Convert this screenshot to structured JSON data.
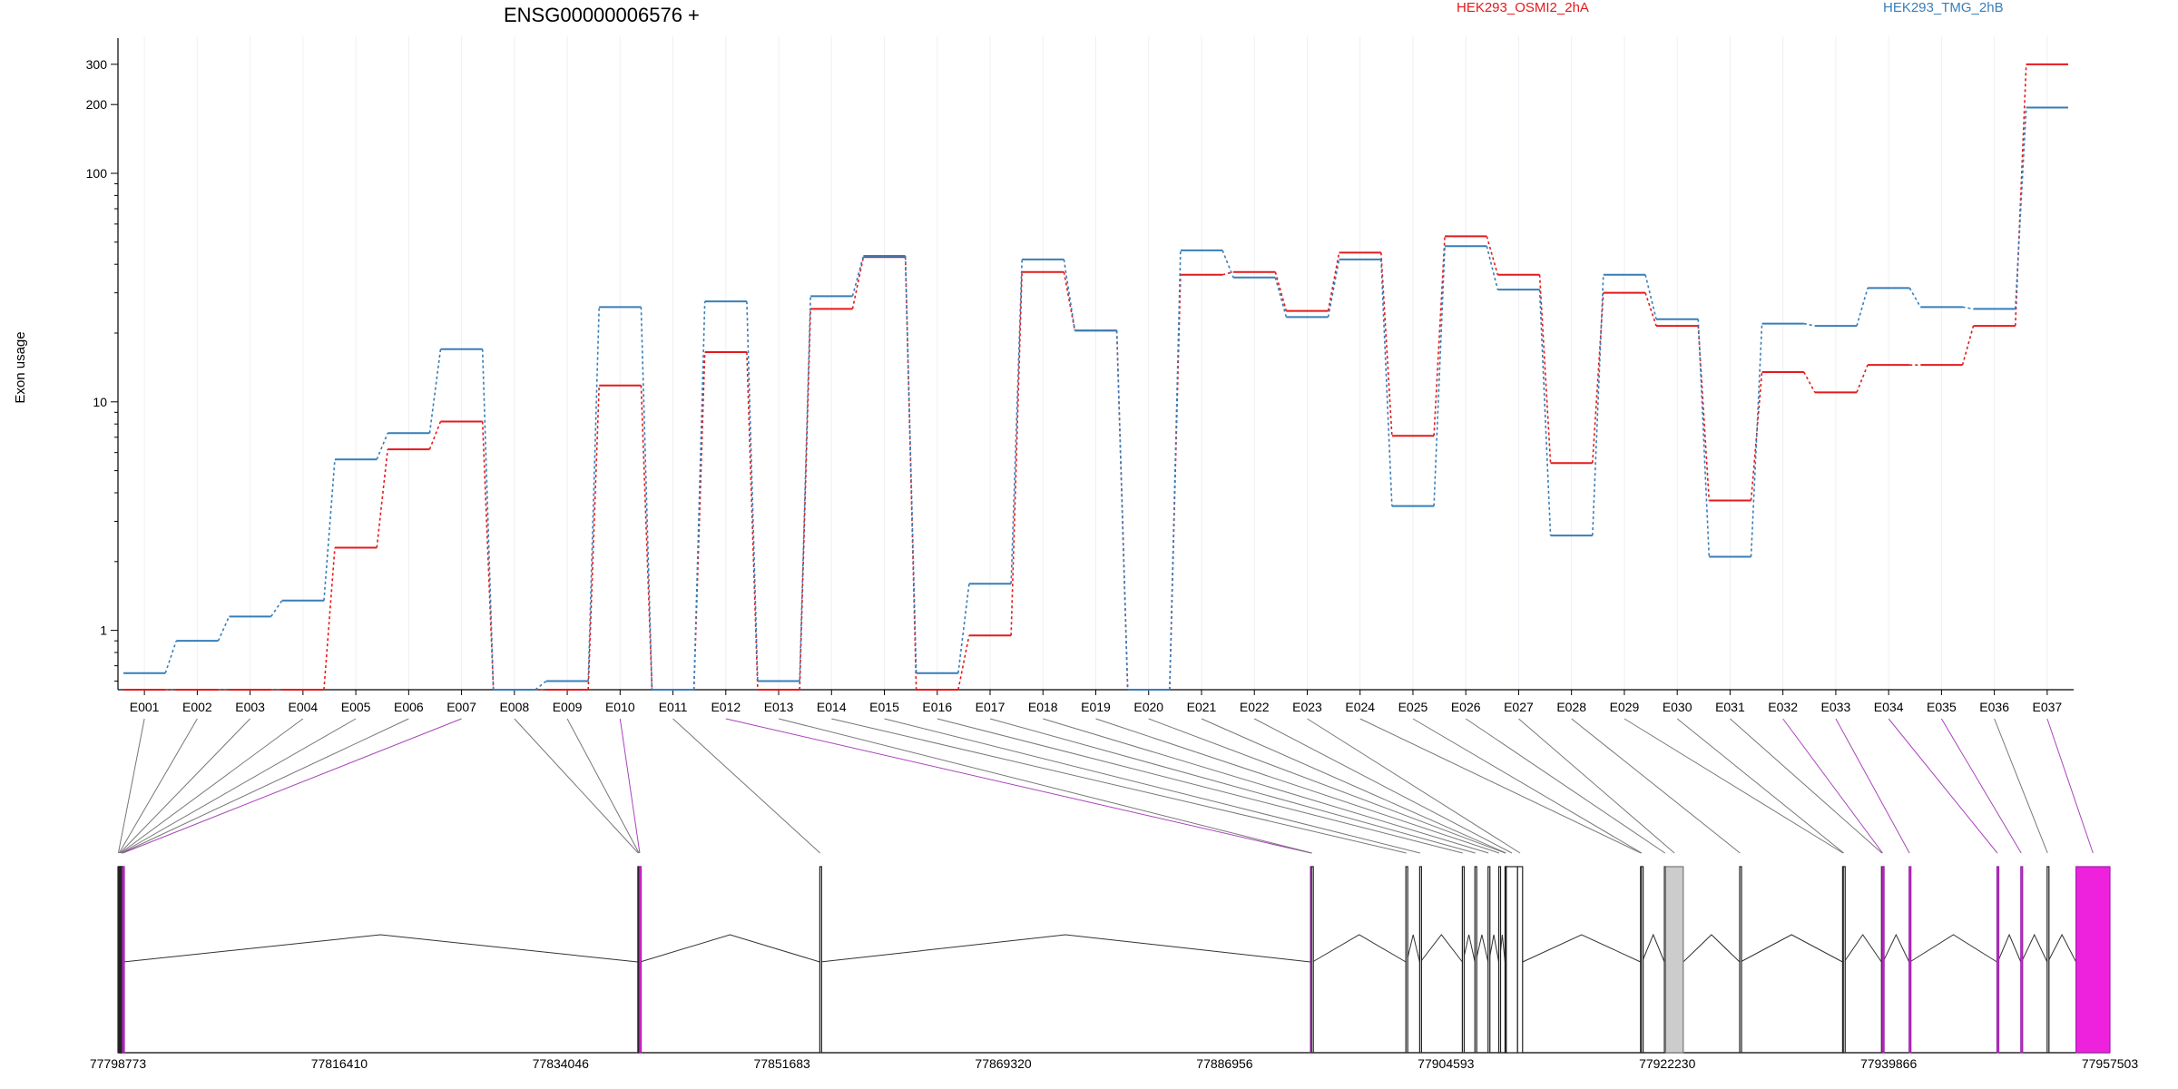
{
  "chart_data": {
    "type": "line",
    "title": "ENSG00000006576 +",
    "xlabel": "",
    "ylabel": "Exon usage",
    "y_scale": "log",
    "ylim": [
      0.55,
      380
    ],
    "y_ticks": [
      1,
      10,
      100,
      200,
      300
    ],
    "grid": true,
    "legend_placement": "top",
    "categories": [
      "E001",
      "E002",
      "E003",
      "E004",
      "E005",
      "E006",
      "E007",
      "E008",
      "E009",
      "E010",
      "E011",
      "E012",
      "E013",
      "E014",
      "E015",
      "E016",
      "E017",
      "E018",
      "E019",
      "E020",
      "E021",
      "E022",
      "E023",
      "E024",
      "E025",
      "E026",
      "E027",
      "E028",
      "E029",
      "E030",
      "E031",
      "E032",
      "E033",
      "E034",
      "E035",
      "E036",
      "E037"
    ],
    "series": [
      {
        "name": "HEK293_OSMI2_2hA",
        "color": "#e41a1c",
        "values": [
          0.55,
          0.55,
          0.55,
          0.55,
          2.3,
          6.2,
          8.2,
          0.55,
          0.55,
          11.8,
          0.55,
          16.5,
          0.55,
          25.5,
          43,
          0.55,
          0.95,
          37,
          20.5,
          0.55,
          36,
          37,
          25,
          45,
          7.1,
          53,
          36,
          5.4,
          30,
          21.5,
          3.7,
          13.5,
          11,
          14.5,
          14.5,
          21.5,
          300
        ]
      },
      {
        "name": "HEK293_TMG_2hB",
        "color": "#377eb8",
        "values": [
          0.65,
          0.9,
          1.15,
          1.35,
          5.6,
          7.3,
          17,
          0.55,
          0.6,
          26,
          0.55,
          27.5,
          0.6,
          29,
          43.5,
          0.65,
          1.6,
          42,
          20.5,
          0.55,
          46,
          35,
          23.5,
          42,
          3.5,
          48,
          31,
          2.6,
          36,
          23,
          2.1,
          22,
          21.5,
          31.5,
          26,
          25.5,
          194
        ]
      }
    ],
    "gene_model": {
      "coordinate_labels": [
        "77798773",
        "77816410",
        "77834046",
        "77851683",
        "77869320",
        "77886956",
        "77904593",
        "77922230",
        "77939866",
        "77957503"
      ],
      "coordinate_range": [
        77798773,
        77957503
      ],
      "exons": [
        {
          "id": "E001",
          "start": 77798773,
          "end": 77798833
        },
        {
          "id": "E002",
          "start": 77798833,
          "end": 77798893
        },
        {
          "id": "E003",
          "start": 77798893,
          "end": 77798953
        },
        {
          "id": "E004",
          "start": 77798953,
          "end": 77799013
        },
        {
          "id": "E005",
          "start": 77799013,
          "end": 77799073
        },
        {
          "id": "E006",
          "start": 77799073,
          "end": 77799133
        },
        {
          "id": "E007",
          "start": 77799133,
          "end": 77799193
        },
        {
          "id": "E008",
          "start": 77840200,
          "end": 77840260
        },
        {
          "id": "E009",
          "start": 77840260,
          "end": 77840320
        },
        {
          "id": "E010",
          "start": 77840320,
          "end": 77840380
        },
        {
          "id": "E011",
          "start": 77854700,
          "end": 77854740
        },
        {
          "id": "E012",
          "start": 77893800,
          "end": 77893880
        },
        {
          "id": "E013",
          "start": 77893880,
          "end": 77893960
        },
        {
          "id": "E014",
          "start": 77901400,
          "end": 77901460
        },
        {
          "id": "E015",
          "start": 77902500,
          "end": 77902560
        },
        {
          "id": "E016",
          "start": 77905900,
          "end": 77905940
        },
        {
          "id": "E017",
          "start": 77906900,
          "end": 77906960
        },
        {
          "id": "E018",
          "start": 77907950,
          "end": 77908010
        },
        {
          "id": "E019",
          "start": 77908800,
          "end": 77908860
        },
        {
          "id": "E020",
          "start": 77909300,
          "end": 77909340
        },
        {
          "id": "E021",
          "start": 77909340,
          "end": 77909400
        },
        {
          "id": "E022",
          "start": 77909400,
          "end": 77910300
        },
        {
          "id": "E023",
          "start": 77910300,
          "end": 77910700
        },
        {
          "id": "E024",
          "start": 77920100,
          "end": 77920160
        },
        {
          "id": "E025",
          "start": 77920160,
          "end": 77920220
        },
        {
          "id": "E026",
          "start": 77922000,
          "end": 77922100
        },
        {
          "id": "E027",
          "start": 77922100,
          "end": 77923500
        },
        {
          "id": "E028",
          "start": 77928000,
          "end": 77928060
        },
        {
          "id": "E029",
          "start": 77936200,
          "end": 77936260
        },
        {
          "id": "E030",
          "start": 77936260,
          "end": 77936320
        },
        {
          "id": "E031",
          "start": 77939300,
          "end": 77939360
        },
        {
          "id": "E032",
          "start": 77939360,
          "end": 77939420
        },
        {
          "id": "E033",
          "start": 77941500,
          "end": 77941560
        },
        {
          "id": "E034",
          "start": 77948500,
          "end": 77948560
        },
        {
          "id": "E035",
          "start": 77950400,
          "end": 77950460
        },
        {
          "id": "E036",
          "start": 77952500,
          "end": 77952560
        },
        {
          "id": "E037",
          "start": 77954800,
          "end": 77957503
        }
      ],
      "highlighted_exons": [
        "E007",
        "E010",
        "E012",
        "E032",
        "E033",
        "E034",
        "E035",
        "E037"
      ],
      "highlight_color": "#ee22dd",
      "highlight_line_color": "#aa44bb",
      "normal_line_color": "#777777",
      "shaded_exons": [
        "E027"
      ],
      "shade_color": "#cccccc"
    }
  }
}
